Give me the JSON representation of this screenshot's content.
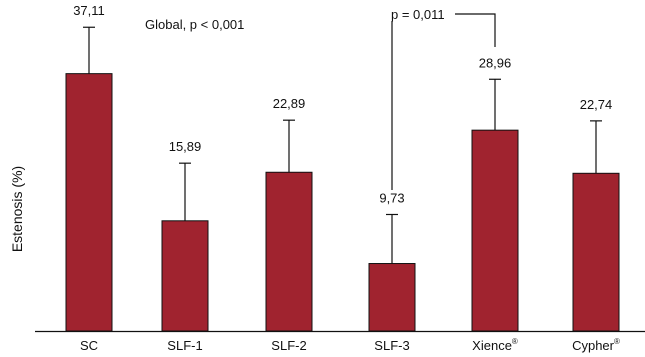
{
  "chart_data": {
    "type": "bar",
    "categories": [
      "SC",
      "SLF-1",
      "SLF-2",
      "SLF-3",
      "Xience",
      "Cypher"
    ],
    "category_superscripts": [
      "",
      "",
      "",
      "",
      "®",
      "®"
    ],
    "values": [
      37.11,
      15.89,
      22.89,
      9.73,
      28.96,
      22.74
    ],
    "value_labels": [
      "37,11",
      "15,89",
      "22,89",
      "9,73",
      "28,96",
      "22,74"
    ],
    "error_upper": [
      43.8,
      24.2,
      30.4,
      16.8,
      36.3,
      30.3
    ],
    "title": "",
    "xlabel": "",
    "ylabel": "Estenosis (%)",
    "ylim": [
      0,
      50
    ],
    "grid": false,
    "bar_color": "#a0232f",
    "annotations": {
      "global": "Global, p < 0,001",
      "pairwise": "p = 0,011",
      "pairwise_between": [
        "SLF-3",
        "Xience"
      ]
    }
  }
}
